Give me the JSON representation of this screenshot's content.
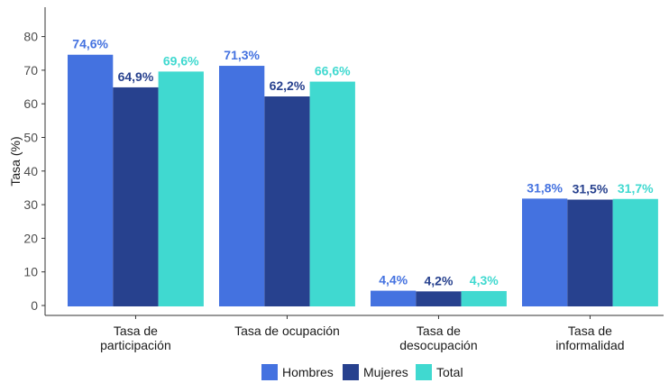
{
  "chart_data": {
    "type": "bar",
    "ylabel": "Tasa (%)",
    "xlabel": "",
    "ylim": [
      -2,
      85
    ],
    "yticks": [
      0,
      10,
      20,
      30,
      40,
      50,
      60,
      70,
      80
    ],
    "categories": [
      [
        "Tasa de",
        "participación"
      ],
      [
        "Tasa de ocupación"
      ],
      [
        "Tasa de",
        "desocupación"
      ],
      [
        "Tasa de",
        "informalidad"
      ]
    ],
    "series": [
      {
        "name": "Hombres",
        "color": "#4472e0",
        "values": [
          74.6,
          71.3,
          4.4,
          31.8
        ],
        "labels": [
          "74,6%",
          "71,3%",
          "4,4%",
          "31,8%"
        ]
      },
      {
        "name": "Mujeres",
        "color": "#27418e",
        "values": [
          64.9,
          62.2,
          4.2,
          31.5
        ],
        "labels": [
          "64,9%",
          "62,2%",
          "4,2%",
          "31,5%"
        ]
      },
      {
        "name": "Total",
        "color": "#40d9d0",
        "values": [
          69.6,
          66.6,
          4.3,
          31.7
        ],
        "labels": [
          "69,6%",
          "66,6%",
          "4,3%",
          "31,7%"
        ]
      }
    ],
    "legend_position": "bottom",
    "grid": false
  }
}
